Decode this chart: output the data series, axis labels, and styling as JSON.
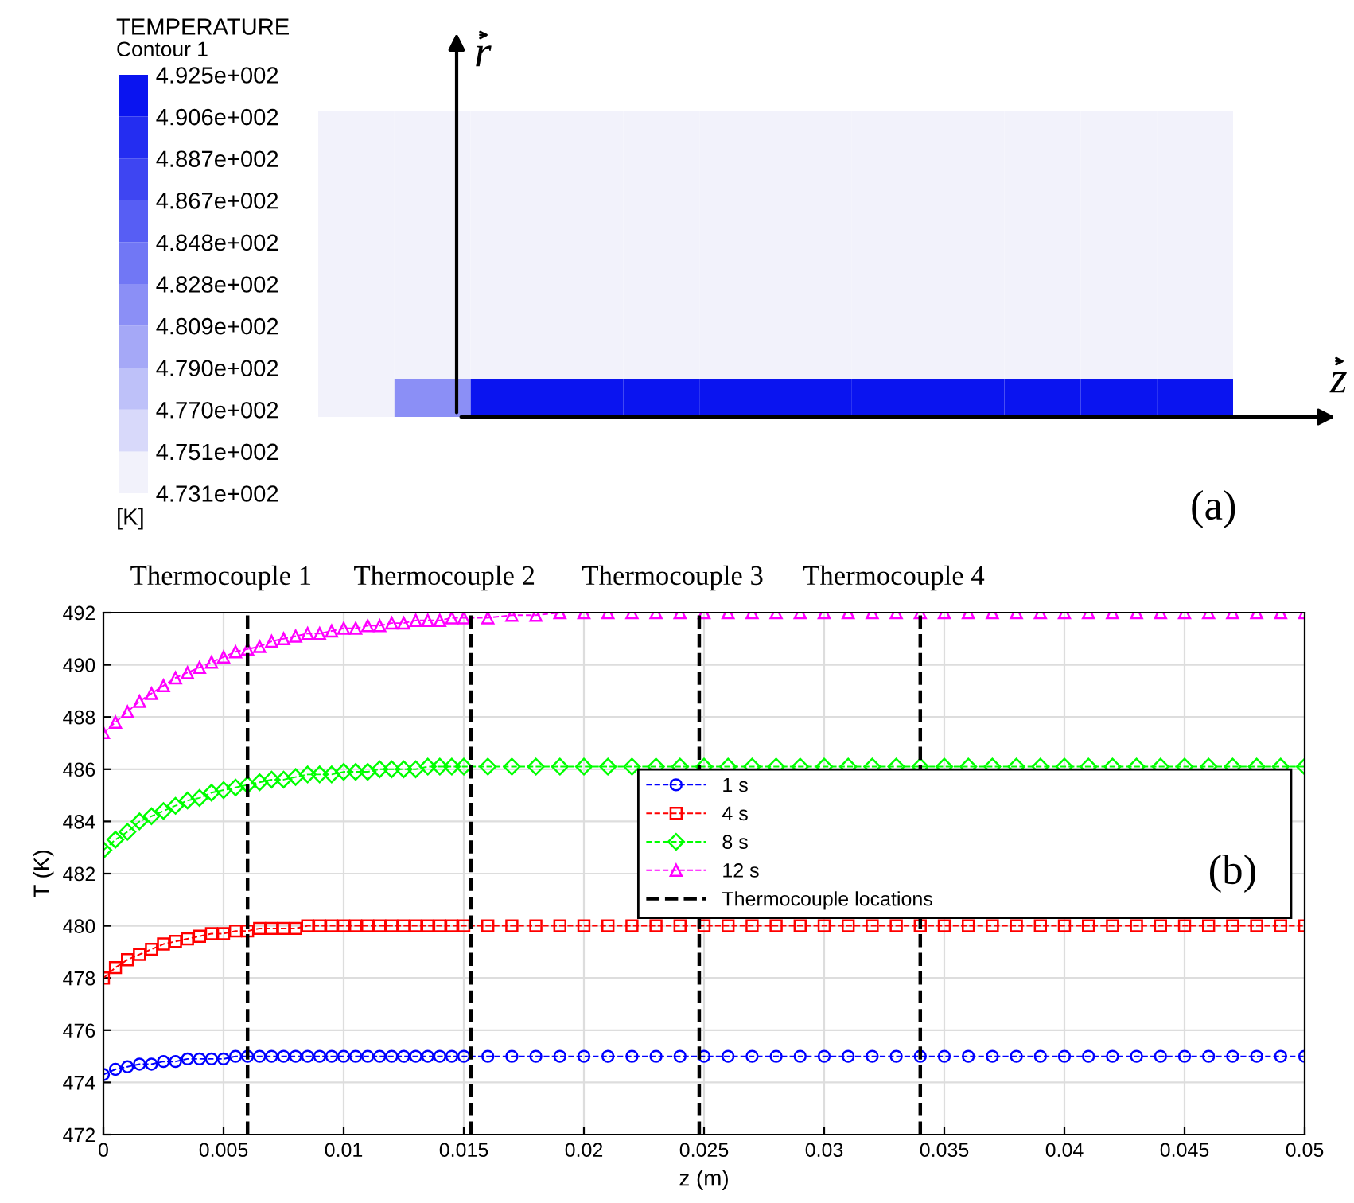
{
  "chart_data": [
    {
      "type": "heatmap",
      "title": "TEMPERATURE",
      "subtitle": "Contour 1",
      "clabel": "[K]",
      "tick_labels": false,
      "categories": [
        null,
        null,
        null,
        null,
        null,
        null,
        null,
        null,
        null,
        null,
        null,
        null
      ],
      "y_categories": [
        null,
        null,
        null,
        null,
        null,
        null,
        null,
        null
      ],
      "cells": [
        [
          473.1,
          473.1,
          473.1,
          473.1,
          473.1,
          473.1,
          473.1,
          473.1,
          473.1,
          473.1,
          473.1,
          473.1
        ],
        [
          473.1,
          473.1,
          473.1,
          473.1,
          473.1,
          473.1,
          473.1,
          473.1,
          473.1,
          473.1,
          473.1,
          473.1
        ],
        [
          473.1,
          473.1,
          473.1,
          473.1,
          473.1,
          473.1,
          473.1,
          473.1,
          473.1,
          473.1,
          473.1,
          473.1
        ],
        [
          473.1,
          473.1,
          473.1,
          473.1,
          473.1,
          473.1,
          473.1,
          473.1,
          473.1,
          473.1,
          473.1,
          473.1
        ],
        [
          473.1,
          473.1,
          473.1,
          473.1,
          473.1,
          473.1,
          473.1,
          473.1,
          473.1,
          473.1,
          473.1,
          473.1
        ],
        [
          473.1,
          473.1,
          473.1,
          473.1,
          473.1,
          473.1,
          473.1,
          473.1,
          473.1,
          473.1,
          473.1,
          473.1
        ],
        [
          473.1,
          473.1,
          473.1,
          473.1,
          473.1,
          473.1,
          473.1,
          473.1,
          473.1,
          473.1,
          473.1,
          473.1
        ],
        [
          473.1,
          482.0,
          492.5,
          492.5,
          492.5,
          492.5,
          492.5,
          492.5,
          492.5,
          492.5,
          492.5,
          492.5
        ]
      ],
      "clim": [
        473.1,
        492.5
      ],
      "cticks": [
        {
          "value": 473.1,
          "label": "4.731e+002"
        },
        {
          "value": 475.1,
          "label": "4.751e+002"
        },
        {
          "value": 477.0,
          "label": "4.770e+002"
        },
        {
          "value": 479.0,
          "label": "4.790e+002"
        },
        {
          "value": 480.9,
          "label": "4.809e+002"
        },
        {
          "value": 482.8,
          "label": "4.828e+002"
        },
        {
          "value": 484.8,
          "label": "4.848e+002"
        },
        {
          "value": 486.7,
          "label": "4.867e+002"
        },
        {
          "value": 488.7,
          "label": "4.887e+002"
        },
        {
          "value": 490.6,
          "label": "4.906e+002"
        },
        {
          "value": 492.5,
          "label": "4.925e+002"
        }
      ],
      "colors": [
        "#f2f2fb",
        "#0a14f0"
      ],
      "annotations": [
        "r",
        "z",
        "(a)"
      ]
    },
    {
      "type": "line",
      "xlabel": "z (m)",
      "ylabel": "T (K)",
      "grid": true,
      "legend": "right",
      "line_style": "dashed",
      "xlim": [
        0,
        0.05
      ],
      "xticks": [
        0,
        0.005,
        0.01,
        0.015,
        0.02,
        0.025,
        0.03,
        0.035,
        0.04,
        0.045,
        0.05
      ],
      "ylim": [
        472,
        492
      ],
      "yticks": [
        472,
        474,
        476,
        478,
        480,
        482,
        484,
        486,
        488,
        490,
        492
      ],
      "x": [
        0,
        0.0005,
        0.001,
        0.0015,
        0.002,
        0.0025,
        0.003,
        0.0035,
        0.004,
        0.0045,
        0.005,
        0.0055,
        0.006,
        0.0065,
        0.007,
        0.0075,
        0.008,
        0.0085,
        0.009,
        0.0095,
        0.01,
        0.0105,
        0.011,
        0.0115,
        0.012,
        0.0125,
        0.013,
        0.0135,
        0.014,
        0.0145,
        0.015,
        0.016,
        0.017,
        0.018,
        0.019,
        0.02,
        0.021,
        0.022,
        0.023,
        0.024,
        0.025,
        0.026,
        0.027,
        0.028,
        0.029,
        0.03,
        0.031,
        0.032,
        0.033,
        0.034,
        0.035,
        0.036,
        0.037,
        0.038,
        0.039,
        0.04,
        0.041,
        0.042,
        0.043,
        0.044,
        0.045,
        0.046,
        0.047,
        0.048,
        0.049,
        0.05
      ],
      "series": [
        {
          "name": "1 s",
          "color": "#0000ff",
          "marker": "circle",
          "values": [
            474.3,
            474.5,
            474.6,
            474.7,
            474.7,
            474.8,
            474.8,
            474.9,
            474.9,
            474.9,
            474.9,
            475,
            475,
            475,
            475,
            475,
            475,
            475,
            475,
            475,
            475,
            475,
            475,
            475,
            475,
            475,
            475,
            475,
            475,
            475,
            475,
            475,
            475,
            475,
            475,
            475,
            475,
            475,
            475,
            475,
            475,
            475,
            475,
            475,
            475,
            475,
            475,
            475,
            475,
            475,
            475,
            475,
            475,
            475,
            475,
            475,
            475,
            475,
            475,
            475,
            475,
            475,
            475,
            475,
            475,
            475
          ]
        },
        {
          "name": "4 s",
          "color": "#ff0000",
          "marker": "square",
          "values": [
            478.0,
            478.4,
            478.7,
            478.9,
            479.1,
            479.3,
            479.4,
            479.5,
            479.6,
            479.7,
            479.7,
            479.8,
            479.8,
            479.9,
            479.9,
            479.9,
            479.9,
            480,
            480,
            480,
            480,
            480,
            480,
            480,
            480,
            480,
            480,
            480,
            480,
            480,
            480,
            480,
            480,
            480,
            480,
            480,
            480,
            480,
            480,
            480,
            480,
            480,
            480,
            480,
            480,
            480,
            480,
            480,
            480,
            480,
            480,
            480,
            480,
            480,
            480,
            480,
            480,
            480,
            480,
            480,
            480,
            480,
            480,
            480,
            480,
            480
          ]
        },
        {
          "name": "8 s",
          "color": "#00ff00",
          "marker": "diamond",
          "values": [
            482.9,
            483.3,
            483.6,
            484.0,
            484.2,
            484.4,
            484.6,
            484.8,
            484.9,
            485.1,
            485.2,
            485.3,
            485.4,
            485.5,
            485.6,
            485.6,
            485.7,
            485.8,
            485.8,
            485.8,
            485.9,
            485.9,
            485.9,
            486.0,
            486.0,
            486.0,
            486.0,
            486.1,
            486.1,
            486.1,
            486.1,
            486.1,
            486.1,
            486.1,
            486.1,
            486.1,
            486.1,
            486.1,
            486.1,
            486.1,
            486.1,
            486.1,
            486.1,
            486.1,
            486.1,
            486.1,
            486.1,
            486.1,
            486.1,
            486.1,
            486.1,
            486.1,
            486.1,
            486.1,
            486.1,
            486.1,
            486.1,
            486.1,
            486.1,
            486.1,
            486.1,
            486.1,
            486.1,
            486.1,
            486.1,
            486.1
          ]
        },
        {
          "name": "12 s",
          "color": "#ff00ff",
          "marker": "triangle",
          "values": [
            487.4,
            487.8,
            488.2,
            488.6,
            488.9,
            489.2,
            489.5,
            489.7,
            489.9,
            490.1,
            490.3,
            490.5,
            490.6,
            490.7,
            490.9,
            491.0,
            491.1,
            491.2,
            491.2,
            491.3,
            491.4,
            491.4,
            491.5,
            491.5,
            491.6,
            491.6,
            491.7,
            491.7,
            491.7,
            491.8,
            491.8,
            491.8,
            491.9,
            491.9,
            492,
            492,
            492,
            492,
            492,
            492,
            492,
            492,
            492,
            492,
            492,
            492,
            492,
            492,
            492,
            492,
            492,
            492,
            492,
            492,
            492,
            492,
            492,
            492,
            492,
            492,
            492,
            492,
            492,
            492,
            492,
            492
          ]
        },
        {
          "name": "Thermocouple locations",
          "color": "#000000",
          "line_style": "dashed",
          "x": [
            0.006,
            0.006
          ],
          "values": [
            472,
            492
          ]
        },
        {
          "color": "#000000",
          "line_style": "dashed",
          "x": [
            0.0153,
            0.0153
          ],
          "values": [
            472,
            492
          ]
        },
        {
          "color": "#000000",
          "line_style": "dashed",
          "x": [
            0.0248,
            0.0248
          ],
          "values": [
            472,
            492
          ]
        },
        {
          "color": "#000000",
          "line_style": "dashed",
          "x": [
            0.034,
            0.034
          ],
          "values": [
            472,
            492
          ]
        }
      ],
      "annotations": [
        {
          "text": "Thermocouple 1",
          "x": 0.006,
          "y": 492
        },
        {
          "text": "Thermocouple 2",
          "x": 0.0153,
          "y": 492
        },
        {
          "text": "Thermocouple 3",
          "x": 0.0248,
          "y": 492
        },
        {
          "text": "Thermocouple 4",
          "x": 0.034,
          "y": 492
        },
        "(b)"
      ]
    }
  ]
}
